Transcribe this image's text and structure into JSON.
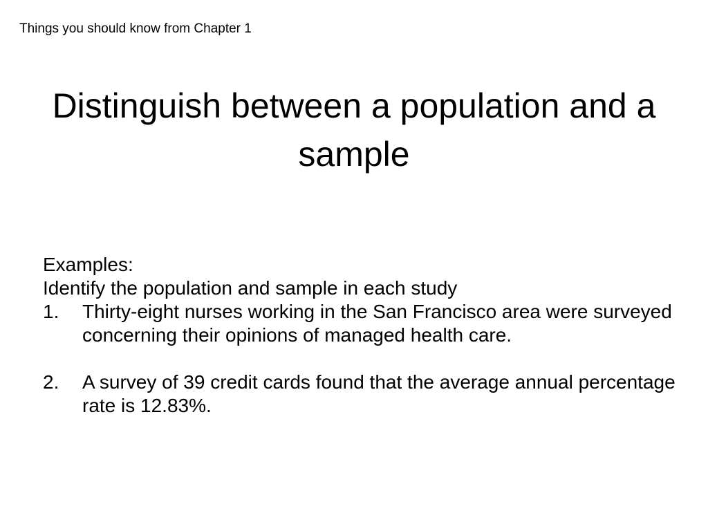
{
  "header": "Things you should know from Chapter 1",
  "title": "Distinguish between a population and a sample",
  "body": {
    "line1": "Examples:",
    "line2": "Identify the population and sample in each study",
    "items": [
      {
        "num": "1.",
        "text": "Thirty-eight nurses working in the San Francisco area were surveyed concerning their opinions of managed health care."
      },
      {
        "num": "2.",
        "text": "A survey of 39 credit cards found that the average annual percentage rate is 12.83%."
      }
    ]
  }
}
